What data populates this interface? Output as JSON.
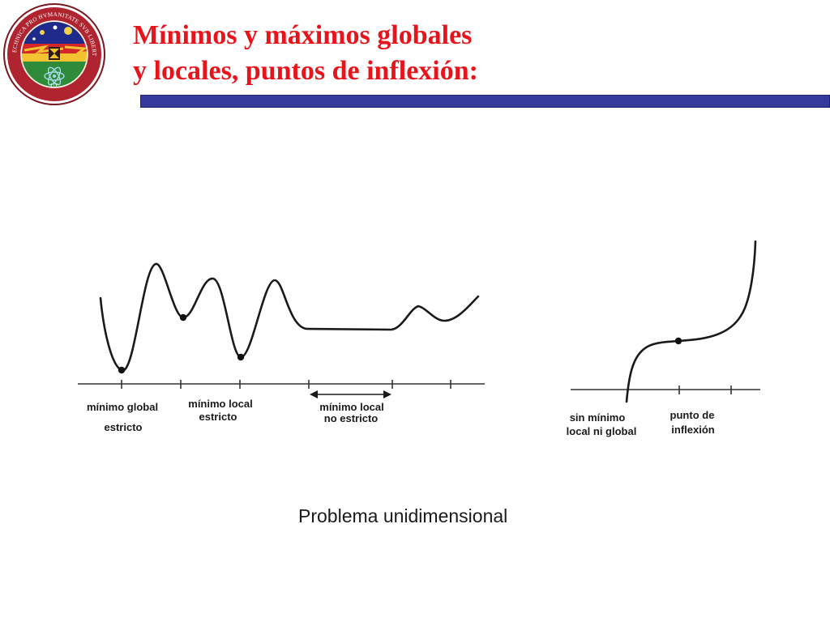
{
  "slide": {
    "title_line1": "Mínimos y máximos globales",
    "title_line2": "y locales, puntos de inflexión:",
    "caption": "Problema unidimensional"
  },
  "seal": {
    "ring_text": "SCIENTIA ET TECHNICA PRO HVMANITATE SVB LIBERTATE IVSTITIA",
    "ring_bottom_text": "UT",
    "colors": {
      "ring": "#b02430",
      "sky": "#1f2a8c",
      "band": "#2e8b3a"
    }
  },
  "left_diagram": {
    "labels": {
      "min_global_l1": "mínimo global",
      "min_global_l2": "estricto",
      "min_local_l1": "mínimo local",
      "min_local_l2": "estricto",
      "min_local_ns_l1": "mínimo local",
      "min_local_ns_l2": "no estricto"
    }
  },
  "right_diagram": {
    "labels": {
      "no_min_l1": "sin mínimo",
      "no_min_l2": "local ni global",
      "inflection_l1": "punto de",
      "inflection_l2": "inflexión"
    }
  },
  "colors": {
    "title": "#e8141c",
    "rule": "#34399a",
    "ink": "#1a1a1a"
  }
}
